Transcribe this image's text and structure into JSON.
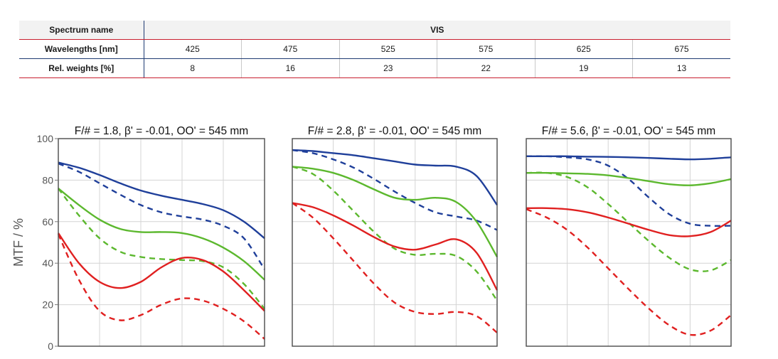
{
  "spectrum_table": {
    "headers": {
      "spectrum_name": "Spectrum name",
      "wavelengths": "Wavelengths [nm]",
      "weights": "Rel. weights [%]"
    },
    "spectrum_value": "VIS",
    "wavelengths": [
      "425",
      "475",
      "525",
      "575",
      "625",
      "675"
    ],
    "weights": [
      "8",
      "16",
      "23",
      "22",
      "19",
      "13"
    ]
  },
  "chart_data": [
    {
      "type": "line",
      "title": "F/# = 1.8, β' = -0.01, OO' = 545 mm",
      "ylabel": "MTF / %",
      "ylim": [
        0,
        100
      ],
      "yticks": [
        0,
        20,
        40,
        60,
        80,
        100
      ],
      "xlim": [
        0,
        1
      ],
      "x": [
        0,
        0.1,
        0.2,
        0.3,
        0.4,
        0.5,
        0.6,
        0.7,
        0.8,
        0.9,
        1.0
      ],
      "grid": true,
      "series": [
        {
          "color": "#1f3f9a",
          "dash": false,
          "values": [
            88.5,
            86,
            82.5,
            78.5,
            75,
            72.5,
            70.5,
            68.5,
            65.5,
            60,
            52
          ]
        },
        {
          "color": "#1f3f9a",
          "dash": true,
          "values": [
            88,
            84,
            78.5,
            73,
            68,
            64.5,
            62.5,
            61,
            58,
            52,
            37
          ]
        },
        {
          "color": "#5cb82e",
          "dash": false,
          "values": [
            76,
            68,
            61,
            56.5,
            55,
            55,
            54.5,
            52,
            47.5,
            41,
            32
          ]
        },
        {
          "color": "#5cb82e",
          "dash": true,
          "values": [
            76,
            63,
            52,
            45.5,
            43,
            42,
            41.5,
            41,
            38,
            30,
            18
          ]
        },
        {
          "color": "#e02020",
          "dash": false,
          "values": [
            54.5,
            40,
            31,
            28,
            31,
            38,
            42.5,
            41.5,
            36,
            27,
            17
          ]
        },
        {
          "color": "#e02020",
          "dash": true,
          "values": [
            54,
            32,
            17,
            12.5,
            15,
            20,
            23,
            22,
            18,
            12,
            3.5
          ]
        }
      ]
    },
    {
      "type": "line",
      "title": "F/# = 2.8, β' = -0.01, OO' = 545 mm",
      "ylim": [
        0,
        100
      ],
      "xlim": [
        0,
        1
      ],
      "x": [
        0,
        0.1,
        0.2,
        0.3,
        0.4,
        0.5,
        0.6,
        0.7,
        0.8,
        0.9,
        1.0
      ],
      "grid": true,
      "series": [
        {
          "color": "#1f3f9a",
          "dash": false,
          "values": [
            94.5,
            94,
            93,
            92,
            90.5,
            89,
            87.5,
            87,
            86.5,
            82,
            68
          ]
        },
        {
          "color": "#1f3f9a",
          "dash": true,
          "values": [
            94.5,
            93,
            90,
            86,
            80.5,
            74.5,
            69,
            64.5,
            62.5,
            60.5,
            56
          ]
        },
        {
          "color": "#5cb82e",
          "dash": false,
          "values": [
            86.5,
            85.5,
            83.5,
            80,
            75.5,
            71.5,
            70.5,
            71.5,
            69.5,
            60,
            43
          ]
        },
        {
          "color": "#5cb82e",
          "dash": true,
          "values": [
            86.5,
            83,
            75,
            65,
            55,
            47,
            44,
            44.5,
            43.5,
            36,
            22
          ]
        },
        {
          "color": "#e02020",
          "dash": false,
          "values": [
            69,
            67,
            63,
            58,
            52.5,
            48,
            46.5,
            49,
            51.5,
            45,
            27
          ]
        },
        {
          "color": "#e02020",
          "dash": true,
          "values": [
            69,
            62,
            52,
            41,
            30,
            21,
            16.5,
            15.5,
            16.5,
            14.5,
            6.5
          ]
        }
      ]
    },
    {
      "type": "line",
      "title": "F/# = 5.6, β' = -0.01, OO' = 545 mm",
      "ylim": [
        0,
        100
      ],
      "xlim": [
        0,
        1
      ],
      "x": [
        0,
        0.1,
        0.2,
        0.3,
        0.4,
        0.5,
        0.6,
        0.7,
        0.8,
        0.9,
        1.0
      ],
      "grid": true,
      "series": [
        {
          "color": "#1f3f9a",
          "dash": false,
          "values": [
            91.5,
            91.5,
            91.5,
            91.3,
            91.2,
            91,
            90.7,
            90.3,
            90,
            90.3,
            91
          ]
        },
        {
          "color": "#1f3f9a",
          "dash": true,
          "values": [
            91.5,
            91.5,
            91,
            90,
            87,
            80.5,
            71.5,
            63.5,
            59,
            58,
            58
          ]
        },
        {
          "color": "#5cb82e",
          "dash": false,
          "values": [
            83.5,
            83.5,
            83.3,
            83,
            82.3,
            81,
            79.5,
            78,
            77.5,
            78.5,
            80.5
          ]
        },
        {
          "color": "#5cb82e",
          "dash": true,
          "values": [
            83.5,
            83.5,
            81.5,
            76.5,
            68.5,
            59.5,
            50.5,
            42.5,
            37,
            36.5,
            41.5
          ]
        },
        {
          "color": "#e02020",
          "dash": false,
          "values": [
            66.5,
            66.5,
            66,
            64.5,
            62,
            59,
            56,
            53.5,
            53,
            55,
            60.5
          ]
        },
        {
          "color": "#e02020",
          "dash": true,
          "values": [
            66,
            62,
            56,
            47.5,
            37.5,
            27.5,
            18,
            10,
            5.5,
            7.5,
            15
          ]
        }
      ]
    }
  ]
}
